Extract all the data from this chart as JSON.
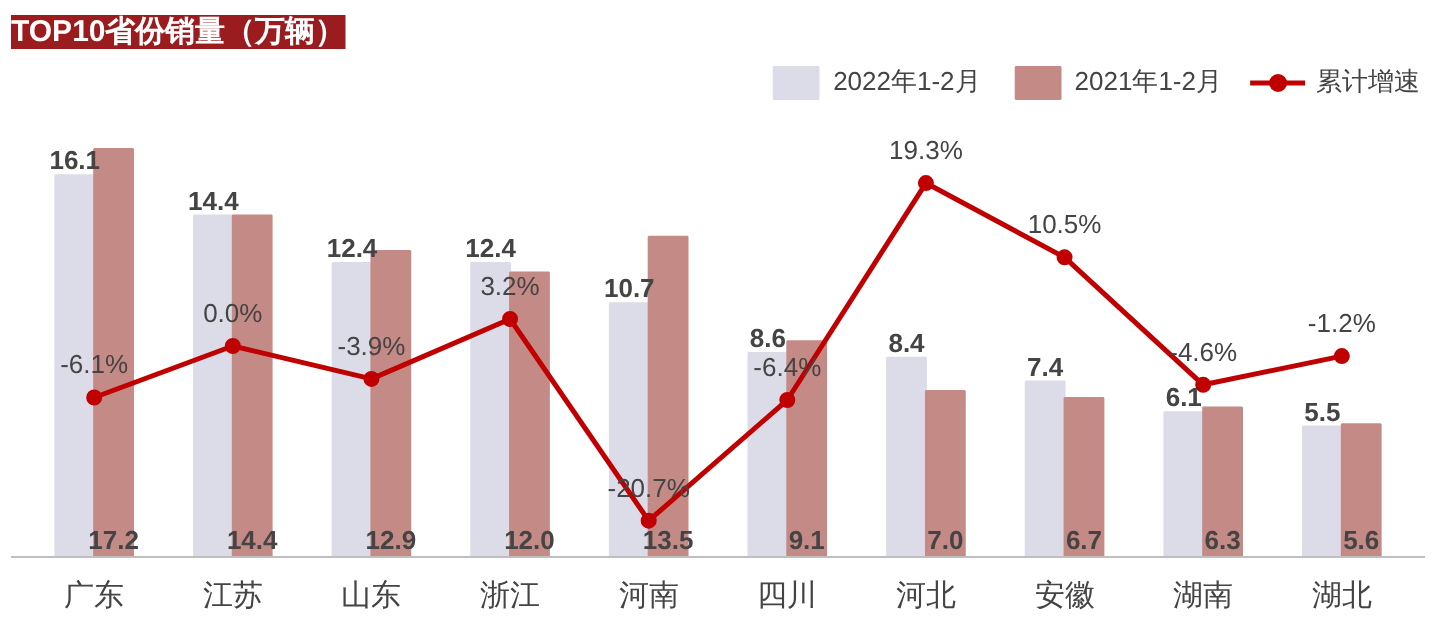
{
  "chart_data": {
    "type": "bar",
    "title": "TOP10省份销量（万辆）",
    "categories": [
      "广东",
      "江苏",
      "山东",
      "浙江",
      "河南",
      "四川",
      "河北",
      "安徽",
      "湖南",
      "湖北"
    ],
    "series": [
      {
        "name": "2022年1-2月",
        "color": "#dcdce8",
        "values": [
          16.1,
          14.4,
          12.4,
          12.4,
          10.7,
          8.6,
          8.4,
          7.4,
          6.1,
          5.5
        ],
        "value_labels": [
          "16.1",
          "14.4",
          "12.4",
          "12.4",
          "10.7",
          "8.6",
          "8.4",
          "7.4",
          "6.1",
          "5.5"
        ]
      },
      {
        "name": "2021年1-2月",
        "color": "#c48a86",
        "values": [
          17.2,
          14.4,
          12.9,
          12.0,
          13.5,
          9.1,
          7.0,
          6.7,
          6.3,
          5.6
        ],
        "value_labels": [
          "17.2",
          "14.4",
          "12.9",
          "12.0",
          "13.5",
          "9.1",
          "7.0",
          "6.7",
          "6.3",
          "5.6"
        ]
      },
      {
        "name": "累计增速",
        "type": "line",
        "axis": "y2",
        "color": "#c00000",
        "values": [
          -6.1,
          0.0,
          -3.9,
          3.2,
          -20.7,
          -6.4,
          19.3,
          10.5,
          -4.6,
          -1.2
        ],
        "value_labels": [
          "-6.1%",
          "0.0%",
          "-3.9%",
          "3.2%",
          "-20.7%",
          "-6.4%",
          "19.3%",
          "10.5%",
          "-4.6%",
          "-1.2%"
        ]
      }
    ],
    "ylim": [
      0,
      21
    ],
    "y2lim": [
      -25,
      34
    ],
    "tick_labels": "x",
    "legend": "top right",
    "marker": "circle",
    "grid": false
  }
}
